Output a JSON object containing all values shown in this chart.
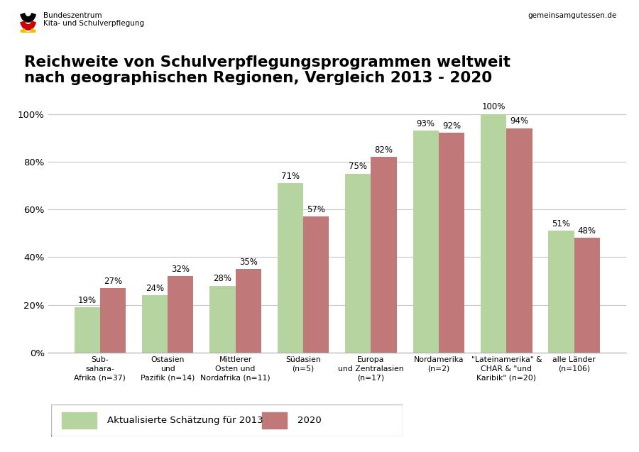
{
  "title_line1": "Reichweite von Schulverpflegungsprogrammen weltweit",
  "title_line2": "nach geographischen Regionen, Vergleich 2013 - 2020",
  "header_left_line1": "Bundeszentrum",
  "header_left_line2": "Kita- und Schulverpflegung",
  "header_right": "gemeinsamgutessen.de",
  "categories": [
    "Sub-\nsahara-\nAfrika (n=37)",
    "Ostasien\nund\nPazifik (n=14)",
    "Mittlerer\nOsten und\nNordafrika (n=11)",
    "Südasien\n(n=5)",
    "Europa\nund Zentralasien\n(n=17)",
    "Nordamerika\n(n=2)",
    "\"Lateinamerika\" &\nCHAR & \"und\nKaribik\" (n=20)",
    "alle Länder\n(n=106)"
  ],
  "values_2013": [
    19,
    24,
    28,
    71,
    75,
    93,
    100,
    51
  ],
  "values_2020": [
    27,
    32,
    35,
    57,
    82,
    92,
    94,
    48
  ],
  "color_2013": "#b5d4a0",
  "color_2020": "#c07878",
  "legend_label_2013": "Aktualisierte Schätzung für 2013",
  "legend_label_2020": "2020",
  "ylim": [
    0,
    107
  ],
  "yticks": [
    0,
    20,
    40,
    60,
    80,
    100
  ],
  "ytick_labels": [
    "0%",
    "20%",
    "40%",
    "60%",
    "80%",
    "100%"
  ],
  "background_color": "#ffffff",
  "bar_width": 0.38,
  "title_fontsize": 15.5,
  "label_fontsize": 8.5,
  "grid_color": "#c8c8c8",
  "border_color": "#aaaaaa"
}
